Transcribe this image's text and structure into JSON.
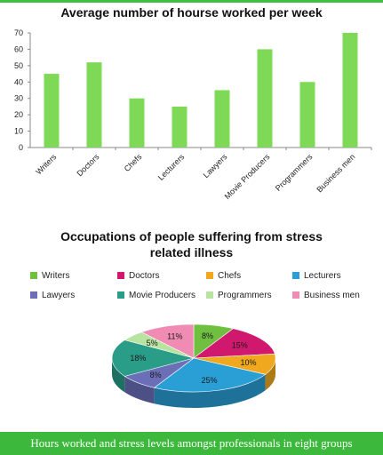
{
  "chart_data": [
    {
      "type": "bar",
      "title": "Average number of hourse worked per week",
      "categories": [
        "Writers",
        "Doctors",
        "Chefs",
        "Lecturers",
        "Lawyers",
        "Movie Producers",
        "Programmers",
        "Business men"
      ],
      "values": [
        45,
        52,
        30,
        25,
        35,
        60,
        40,
        70
      ],
      "ylim": [
        0,
        70
      ],
      "yticks": [
        0,
        10,
        20,
        30,
        40,
        50,
        60,
        70
      ],
      "xlabel": "",
      "ylabel": "",
      "grid": false,
      "color": "#7ed957"
    },
    {
      "type": "pie",
      "title_lines": [
        "Occupations of people suffering from stress",
        "related illness"
      ],
      "legend_position": "top",
      "slices": [
        {
          "label": "Writers",
          "value": 8,
          "display": "8%",
          "color": "#6fbf40"
        },
        {
          "label": "Doctors",
          "value": 15,
          "display": "15%",
          "color": "#d0196e"
        },
        {
          "label": "Chefs",
          "value": 10,
          "display": "10%",
          "color": "#f0a91e"
        },
        {
          "label": "Lecturers",
          "value": 25,
          "display": "25%",
          "color": "#2a9fd6"
        },
        {
          "label": "Lawyers",
          "value": 8,
          "display": "8%",
          "color": "#6a6fb8"
        },
        {
          "label": "Movie Producers",
          "value": 18,
          "display": "18%",
          "color": "#2a9d88"
        },
        {
          "label": "Programmers",
          "value": 5,
          "display": "5%",
          "color": "#b9e3a1"
        },
        {
          "label": "Business men",
          "value": 11,
          "display": "11%",
          "color": "#f08cb4"
        }
      ]
    }
  ],
  "footer": {
    "caption": "Hours worked and stress levels amongst professionals in eight groups"
  }
}
